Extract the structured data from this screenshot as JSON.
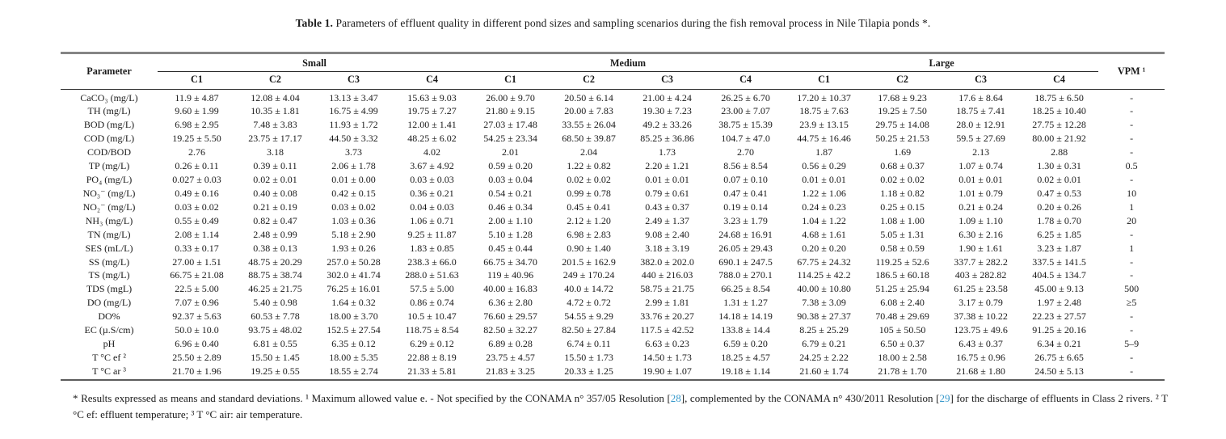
{
  "title": {
    "label": "Table 1.",
    "text": " Parameters of effluent quality in different pond sizes and sampling scenarios during the fish removal process in Nile Tilapia ponds *."
  },
  "table": {
    "param_header": "Parameter",
    "vpm_header": "VPM ¹",
    "groups": [
      {
        "label": "Small"
      },
      {
        "label": "Medium"
      },
      {
        "label": "Large"
      }
    ],
    "scenario_headers": [
      "C1",
      "C2",
      "C3",
      "C4"
    ],
    "rows": [
      {
        "param": "CaCO₃ (mg/L)",
        "cells": [
          "11.9 ± 4.87",
          "12.08 ± 4.04",
          "13.13 ± 3.47",
          "15.63 ± 9.03",
          "26.00 ± 9.70",
          "20.50 ± 6.14",
          "21.00 ± 4.24",
          "26.25 ± 6.70",
          "17.20 ± 10.37",
          "17.68 ± 9.23",
          "17.6 ± 8.64",
          "18.75 ± 6.50"
        ],
        "vpm": "-"
      },
      {
        "param": "TH (mg/L)",
        "cells": [
          "9.60 ± 1.99",
          "10.35 ± 1.81",
          "16.75 ± 4.99",
          "19.75 ± 7.27",
          "21.80 ± 9.15",
          "20.00 ± 7.83",
          "19.30 ± 7.23",
          "23.00 ± 7.07",
          "18.75 ± 7.63",
          "19.25 ± 7.50",
          "18.75 ± 7.41",
          "18.25 ± 10.40"
        ],
        "vpm": "-"
      },
      {
        "param": "BOD (mg/L)",
        "cells": [
          "6.98 ± 2.95",
          "7.48 ± 3.83",
          "11.93 ± 1.72",
          "12.00 ± 1.41",
          "27.03 ± 17.48",
          "33.55 ± 26.04",
          "49.2 ± 33.26",
          "38.75 ± 15.39",
          "23.9 ± 13.15",
          "29.75 ± 14.08",
          "28.0 ± 12.91",
          "27.75 ± 12.28"
        ],
        "vpm": "-"
      },
      {
        "param": "COD (mg/L)",
        "cells": [
          "19.25 ± 5.50",
          "23.75 ± 17.17",
          "44.50 ± 3.32",
          "48.25 ± 6.02",
          "54.25 ± 23.34",
          "68.50 ± 39.87",
          "85.25 ± 36.86",
          "104.7 ± 47.0",
          "44.75 ± 16.46",
          "50.25 ± 21.53",
          "59.5 ± 27.69",
          "80.00 ± 21.92"
        ],
        "vpm": "-"
      },
      {
        "param": "COD/BOD",
        "cells": [
          "2.76",
          "3.18",
          "3.73",
          "4.02",
          "2.01",
          "2.04",
          "1.73",
          "2.70",
          "1.87",
          "1.69",
          "2.13",
          "2.88"
        ],
        "vpm": "-"
      },
      {
        "param": "TP (mg/L)",
        "cells": [
          "0.26 ± 0.11",
          "0.39 ± 0.11",
          "2.06 ± 1.78",
          "3.67 ± 4.92",
          "0.59 ± 0.20",
          "1.22 ± 0.82",
          "2.20 ± 1.21",
          "8.56 ± 8.54",
          "0.56 ± 0.29",
          "0.68 ± 0.37",
          "1.07 ± 0.74",
          "1.30 ± 0.31"
        ],
        "vpm": "0.5"
      },
      {
        "param": "PO₄ (mg/L)",
        "cells": [
          "0.027 ± 0.03",
          "0.02 ± 0.01",
          "0.01 ± 0.00",
          "0.03 ± 0.03",
          "0.03 ± 0.04",
          "0.02 ± 0.02",
          "0.01 ± 0.01",
          "0.07 ± 0.10",
          "0.01 ± 0.01",
          "0.02 ± 0.02",
          "0.01 ± 0.01",
          "0.02 ± 0.01"
        ],
        "vpm": "-"
      },
      {
        "param": "NO₃⁻ (mg/L)",
        "cells": [
          "0.49 ± 0.16",
          "0.40 ± 0.08",
          "0.42 ± 0.15",
          "0.36 ± 0.21",
          "0.54 ± 0.21",
          "0.99 ± 0.78",
          "0.79 ± 0.61",
          "0.47 ± 0.41",
          "1.22 ± 1.06",
          "1.18 ± 0.82",
          "1.01 ± 0.79",
          "0.47 ± 0.53"
        ],
        "vpm": "10"
      },
      {
        "param": "NO₂⁻ (mg/L)",
        "cells": [
          "0.03 ± 0.02",
          "0.21 ± 0.19",
          "0.03 ± 0.02",
          "0.04 ± 0.03",
          "0.46 ± 0.34",
          "0.45 ± 0.41",
          "0.43 ± 0.37",
          "0.19 ± 0.14",
          "0.24 ± 0.23",
          "0.25 ± 0.15",
          "0.21 ± 0.24",
          "0.20 ± 0.26"
        ],
        "vpm": "1"
      },
      {
        "param": "NH₃ (mg/L)",
        "cells": [
          "0.55 ± 0.49",
          "0.82 ± 0.47",
          "1.03 ± 0.36",
          "1.06 ± 0.71",
          "2.00 ± 1.10",
          "2.12 ± 1.20",
          "2.49 ± 1.37",
          "3.23 ± 1.79",
          "1.04 ± 1.22",
          "1.08 ± 1.00",
          "1.09 ± 1.10",
          "1.78 ± 0.70"
        ],
        "vpm": "20"
      },
      {
        "param": "TN (mg/L)",
        "cells": [
          "2.08 ± 1.14",
          "2.48 ± 0.99",
          "5.18 ± 2.90",
          "9.25 ± 11.87",
          "5.10 ± 1.28",
          "6.98 ± 2.83",
          "9.08 ± 2.40",
          "24.68 ± 16.91",
          "4.68 ± 1.61",
          "5.05 ± 1.31",
          "6.30 ± 2.16",
          "6.25 ± 1.85"
        ],
        "vpm": "-"
      },
      {
        "param": "SES (mL/L)",
        "cells": [
          "0.33 ± 0.17",
          "0.38 ± 0.13",
          "1.93 ± 0.26",
          "1.83 ± 0.85",
          "0.45 ± 0.44",
          "0.90 ± 1.40",
          "3.18 ± 3.19",
          "26.05 ± 29.43",
          "0.20 ± 0.20",
          "0.58 ± 0.59",
          "1.90 ± 1.61",
          "3.23 ± 1.87"
        ],
        "vpm": "1"
      },
      {
        "param": "SS (mg/L)",
        "cells": [
          "27.00 ± 1.51",
          "48.75 ± 20.29",
          "257.0 ± 50.28",
          "238.3 ± 66.0",
          "66.75 ± 34.70",
          "201.5 ± 162.9",
          "382.0 ± 202.0",
          "690.1 ± 247.5",
          "67.75 ± 24.32",
          "119.25 ± 52.6",
          "337.7 ± 282.2",
          "337.5 ± 141.5"
        ],
        "vpm": "-"
      },
      {
        "param": "TS (mg/L)",
        "cells": [
          "66.75 ± 21.08",
          "88.75 ± 38.74",
          "302.0 ± 41.74",
          "288.0 ± 51.63",
          "119 ± 40.96",
          "249 ± 170.24",
          "440 ± 216.03",
          "788.0 ± 270.1",
          "114.25 ± 42.2",
          "186.5 ± 60.18",
          "403 ± 282.82",
          "404.5 ± 134.7"
        ],
        "vpm": "-"
      },
      {
        "param": "TDS (mgL)",
        "cells": [
          "22.5 ± 5.00",
          "46.25 ± 21.75",
          "76.25 ± 16.01",
          "57.5 ± 5.00",
          "40.00 ± 16.83",
          "40.0 ± 14.72",
          "58.75 ± 21.75",
          "66.25 ± 8.54",
          "40.00 ± 10.80",
          "51.25 ± 25.94",
          "61.25 ± 23.58",
          "45.00 ± 9.13"
        ],
        "vpm": "500"
      },
      {
        "param": "DO (mg/L)",
        "cells": [
          "7.07 ± 0.96",
          "5.40 ± 0.98",
          "1.64 ± 0.32",
          "0.86 ± 0.74",
          "6.36 ± 2.80",
          "4.72 ± 0.72",
          "2.99 ± 1.81",
          "1.31 ± 1.27",
          "7.38 ± 3.09",
          "6.08 ± 2.40",
          "3.17 ± 0.79",
          "1.97 ± 2.48"
        ],
        "vpm": "≥5"
      },
      {
        "param": "DO%",
        "cells": [
          "92.37 ± 5.63",
          "60.53 ± 7.78",
          "18.00 ± 3.70",
          "10.5 ± 10.47",
          "76.60 ± 29.57",
          "54.55 ± 9.29",
          "33.76 ± 20.27",
          "14.18 ± 14.19",
          "90.38 ± 27.37",
          "70.48 ± 29.69",
          "37.38 ± 10.22",
          "22.23 ± 27.57"
        ],
        "vpm": "-"
      },
      {
        "param": "EC (µ.S/cm)",
        "cells": [
          "50.0 ± 10.0",
          "93.75 ± 48.02",
          "152.5 ± 27.54",
          "118.75 ± 8.54",
          "82.50 ± 32.27",
          "82.50 ± 27.84",
          "117.5 ± 42.52",
          "133.8 ± 14.4",
          "8.25 ± 25.29",
          "105 ± 50.50",
          "123.75 ± 49.6",
          "91.25 ± 20.16"
        ],
        "vpm": "-"
      },
      {
        "param": "pH",
        "cells": [
          "6.96 ± 0.40",
          "6.81 ± 0.55",
          "6.35 ± 0.12",
          "6.29 ± 0.12",
          "6.89 ± 0.28",
          "6.74 ± 0.11",
          "6.63 ± 0.23",
          "6.59 ± 0.20",
          "6.79 ± 0.21",
          "6.50 ± 0.37",
          "6.43 ± 0.37",
          "6.34 ± 0.21"
        ],
        "vpm": "5–9"
      },
      {
        "param": "T °C ef ²",
        "cells": [
          "25.50 ± 2.89",
          "15.50 ± 1.45",
          "18.00 ± 5.35",
          "22.88 ± 8.19",
          "23.75 ± 4.57",
          "15.50 ± 1.73",
          "14.50 ± 1.73",
          "18.25 ± 4.57",
          "24.25 ± 2.22",
          "18.00 ± 2.58",
          "16.75 ± 0.96",
          "26.75 ± 6.65"
        ],
        "vpm": "-"
      },
      {
        "param": "T °C ar ³",
        "cells": [
          "21.70 ± 1.96",
          "19.25 ± 0.55",
          "18.55 ± 2.74",
          "21.33 ± 5.81",
          "21.83 ± 3.25",
          "20.33 ± 1.25",
          "19.90 ± 1.07",
          "19.18 ± 1.14",
          "21.60 ± 1.74",
          "21.78 ± 1.70",
          "21.68 ± 1.80",
          "24.50 ± 5.13"
        ],
        "vpm": "-"
      }
    ]
  },
  "footnote": {
    "part1": "* Results expressed as means and standard deviations. ¹ Maximum allowed value e. - Not specified by the CONAMA n° 357/05 Resolution [",
    "ref1": "28",
    "part2": "], complemented by the CONAMA n° 430/2011 Resolution [",
    "ref2": "29",
    "part3": "] for the discharge of effluents in Class 2 rivers. ² T °C ef: effluent temperature; ³ T °C air: air temperature."
  },
  "colors": {
    "citation": "#3598cb",
    "text": "#1a1a1a",
    "rule_outer": "#858585",
    "rule_inner": "#2b2b2b"
  }
}
